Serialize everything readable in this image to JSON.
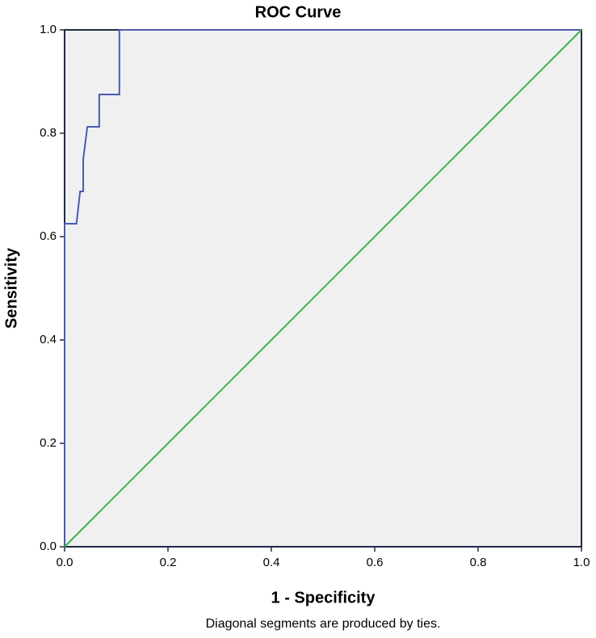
{
  "chart_data": {
    "type": "line",
    "title": "ROC Curve",
    "x_label": "1 - Specificity",
    "y_label": "Sensitivity",
    "footnote": "Diagonal segments are produced by ties.",
    "series": [
      {
        "color": "#4a5ab0",
        "x": [
          0,
          0,
          0.023,
          0.03,
          0.036,
          0.036,
          0.044,
          0.067,
          0.067,
          0.106,
          0.106,
          1.0
        ],
        "values": [
          0,
          0.625,
          0.625,
          0.6875,
          0.6875,
          0.75,
          0.8125,
          0.8125,
          0.875,
          0.875,
          1.0,
          1.0
        ]
      },
      {
        "color": "#3cb44b",
        "x": [
          0,
          1.0
        ],
        "values": [
          0,
          1.0
        ]
      }
    ],
    "xlim": [
      0,
      1.0
    ],
    "ylim": [
      0,
      1.0
    ],
    "xticks": [
      {
        "value": 0,
        "label": "0.0"
      },
      {
        "value": 0.2,
        "label": "0.2"
      },
      {
        "value": 0.4,
        "label": "0.4"
      },
      {
        "value": 0.6,
        "label": "0.6"
      },
      {
        "value": 0.8,
        "label": "0.8"
      },
      {
        "value": 1.0,
        "label": "1.0"
      }
    ],
    "yticks": [
      {
        "value": 0,
        "label": "0.0"
      },
      {
        "value": 0.2,
        "label": "0.2"
      },
      {
        "value": 0.4,
        "label": "0.4"
      },
      {
        "value": 0.6,
        "label": "0.6"
      },
      {
        "value": 0.8,
        "label": "0.8"
      },
      {
        "value": 1.0,
        "label": "1.0"
      }
    ],
    "grid": false,
    "background": "#f0f0f0"
  }
}
